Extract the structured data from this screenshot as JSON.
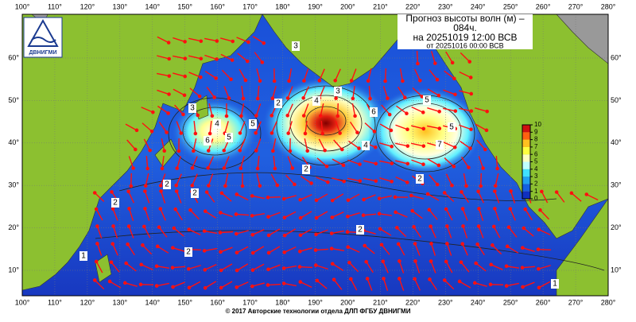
{
  "header": {
    "lines": [
      "Прогноз высоты волн (м) –",
      "084ч.",
      "на 20251019 12:00 ВСВ"
    ],
    "issued": "от 20251016 00:00 ВСВ"
  },
  "logo": "ДВНИГМИ",
  "footer": "© 2017 Авторские технологии отдела ДЛП ФГБУ ДВНИГМИ",
  "map": {
    "lon_ticks": [
      {
        "value": 100,
        "label": "100°"
      },
      {
        "value": 110,
        "label": "110°"
      },
      {
        "value": 120,
        "label": "120°"
      },
      {
        "value": 130,
        "label": "130°"
      },
      {
        "value": 140,
        "label": "140°"
      },
      {
        "value": 150,
        "label": "150°"
      },
      {
        "value": 160,
        "label": "160°"
      },
      {
        "value": 170,
        "label": "170°"
      },
      {
        "value": 180,
        "label": "180°"
      },
      {
        "value": 190,
        "label": "190°"
      },
      {
        "value": 200,
        "label": "200°"
      },
      {
        "value": 210,
        "label": "210°"
      },
      {
        "value": 220,
        "label": "220°"
      },
      {
        "value": 230,
        "label": "230°"
      },
      {
        "value": 240,
        "label": "240°"
      },
      {
        "value": 250,
        "label": "250°"
      },
      {
        "value": 260,
        "label": "260°"
      },
      {
        "value": 270,
        "label": "270°"
      },
      {
        "value": 280,
        "label": "280°"
      }
    ],
    "lat_ticks": [
      {
        "value": 10,
        "label": "10°"
      },
      {
        "value": 20,
        "label": "20°"
      },
      {
        "value": 30,
        "label": "30°"
      },
      {
        "value": 40,
        "label": "40°"
      },
      {
        "value": 50,
        "label": "50°"
      },
      {
        "value": 60,
        "label": "60°"
      }
    ],
    "contour_labels": [
      3,
      2,
      2,
      2,
      2,
      3,
      4,
      4,
      5,
      6,
      5,
      4,
      3,
      2,
      5,
      5,
      6,
      7,
      2,
      2,
      2,
      1,
      1
    ]
  },
  "colorbar": {
    "ticks": [
      0,
      1,
      2,
      3,
      4,
      5,
      6,
      7,
      8,
      9,
      10
    ],
    "colors": [
      "#1030c0",
      "#1560e0",
      "#20a0f0",
      "#40e0ff",
      "#c0ffff",
      "#ffffc0",
      "#ffff40",
      "#ffc020",
      "#ff6010",
      "#d01010",
      "#800000"
    ]
  }
}
